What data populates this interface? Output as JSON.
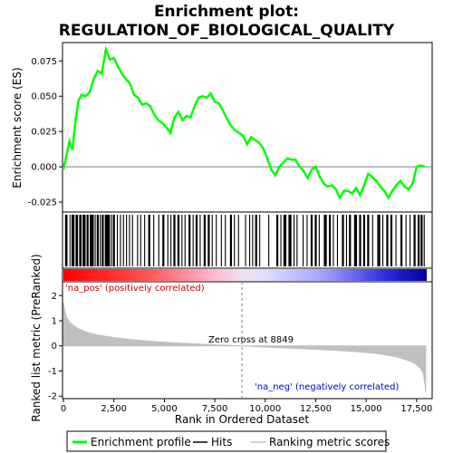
{
  "chart_data": {
    "type": "line",
    "title_line1": "Enrichment plot:",
    "title_line2": "REGULATION_OF_BIOLOGICAL_QUALITY",
    "xlabel": "Rank in Ordered Dataset",
    "ylabel_top": "Enrichment score (ES)",
    "ylabel_bottom": "Ranked list metric (PreRanked)",
    "x_total": 18000,
    "xlim": [
      0,
      18000
    ],
    "x_ticks": [
      0,
      2500,
      5000,
      7500,
      10000,
      12500,
      15000,
      17500
    ],
    "x_tick_labels": [
      "0",
      "2,500",
      "5,000",
      "7,500",
      "10,000",
      "12,500",
      "15,000",
      "17,500"
    ],
    "es_ylim": [
      -0.032,
      0.088
    ],
    "es_ticks": [
      -0.025,
      0.0,
      0.025,
      0.05,
      0.075
    ],
    "es_tick_labels": [
      "-0.025",
      "0.000",
      "0.025",
      "0.050",
      "0.075"
    ],
    "metric_ylim": [
      -2.1,
      2.55
    ],
    "metric_ticks": [
      -2,
      -1,
      0,
      1,
      2
    ],
    "metric_tick_labels": [
      "-2",
      "-1",
      "0",
      "1",
      "2"
    ],
    "zero_cross": 8849,
    "zero_cross_label": "Zero cross at 8849",
    "pos_label": "'na_pos' (positively correlated)",
    "neg_label": "'na_neg' (negatively correlated)",
    "es_series": {
      "name": "Enrichment profile",
      "color": "#00ff00",
      "x": [
        0,
        150,
        300,
        450,
        600,
        750,
        900,
        1100,
        1300,
        1500,
        1700,
        1900,
        2100,
        2300,
        2500,
        2700,
        2900,
        3100,
        3300,
        3500,
        3700,
        3900,
        4100,
        4300,
        4500,
        4700,
        4900,
        5100,
        5300,
        5500,
        5700,
        5900,
        6100,
        6300,
        6500,
        6700,
        6900,
        7100,
        7300,
        7500,
        7700,
        7900,
        8100,
        8300,
        8500,
        8700,
        8900,
        9100,
        9300,
        9500,
        9700,
        9900,
        10100,
        10300,
        10500,
        10700,
        10900,
        11100,
        11300,
        11500,
        11700,
        11900,
        12100,
        12300,
        12500,
        12700,
        12900,
        13100,
        13300,
        13500,
        13700,
        13900,
        14100,
        14300,
        14500,
        14700,
        14900,
        15100,
        15300,
        15500,
        15700,
        15900,
        16100,
        16300,
        16500,
        16700,
        16900,
        17100,
        17300,
        17500,
        17700,
        17900
      ],
      "y": [
        -0.002,
        0.008,
        0.018,
        0.012,
        0.033,
        0.047,
        0.051,
        0.05,
        0.053,
        0.062,
        0.068,
        0.066,
        0.083,
        0.076,
        0.077,
        0.071,
        0.066,
        0.062,
        0.059,
        0.051,
        0.049,
        0.044,
        0.045,
        0.043,
        0.037,
        0.033,
        0.031,
        0.028,
        0.024,
        0.035,
        0.039,
        0.033,
        0.036,
        0.035,
        0.043,
        0.049,
        0.05,
        0.049,
        0.052,
        0.046,
        0.045,
        0.04,
        0.034,
        0.029,
        0.026,
        0.024,
        0.022,
        0.016,
        0.021,
        0.019,
        0.017,
        0.013,
        0.006,
        -0.002,
        -0.006,
        0.0,
        0.003,
        0.006,
        0.005,
        0.005,
        0.0,
        -0.003,
        -0.008,
        -0.002,
        0.0,
        -0.007,
        -0.012,
        -0.014,
        -0.013,
        -0.016,
        -0.022,
        -0.017,
        -0.017,
        -0.019,
        -0.015,
        -0.02,
        -0.013,
        -0.005,
        -0.007,
        -0.01,
        -0.014,
        -0.017,
        -0.022,
        -0.017,
        -0.013,
        -0.01,
        -0.014,
        -0.016,
        -0.012,
        0.0,
        0.001,
        0.0
      ]
    },
    "metric_series": {
      "name": "Ranking metric scores",
      "color": "#c0c0c0",
      "x": [
        0,
        50,
        150,
        300,
        500,
        800,
        1200,
        1800,
        2500,
        3500,
        4500,
        5500,
        6500,
        7500,
        8849,
        10000,
        11500,
        12500,
        13500,
        14500,
        15500,
        16000,
        16500,
        17000,
        17300,
        17500,
        17700,
        17800,
        17850,
        17900,
        17950
      ],
      "y": [
        1.72,
        1.45,
        1.15,
        0.95,
        0.8,
        0.66,
        0.53,
        0.42,
        0.33,
        0.24,
        0.17,
        0.12,
        0.08,
        0.04,
        0.0,
        -0.05,
        -0.1,
        -0.14,
        -0.18,
        -0.23,
        -0.3,
        -0.36,
        -0.44,
        -0.56,
        -0.65,
        -0.75,
        -0.9,
        -1.05,
        -1.2,
        -1.45,
        -1.85
      ]
    },
    "hits_name": "Hits",
    "hit_segments": [
      [
        80,
        200
      ],
      [
        300,
        330
      ],
      [
        400,
        550
      ],
      [
        600,
        720
      ],
      [
        780,
        900
      ],
      [
        950,
        1100
      ],
      [
        1150,
        1250
      ],
      [
        1300,
        1500
      ],
      [
        1550,
        1600
      ],
      [
        1650,
        1750
      ],
      [
        1800,
        1850
      ],
      [
        1900,
        2000
      ],
      [
        2050,
        2300
      ],
      [
        2350,
        2400
      ],
      [
        2450,
        2550
      ],
      [
        2650,
        2700
      ],
      [
        2800,
        2850
      ],
      [
        2950,
        3000
      ],
      [
        3100,
        3150
      ],
      [
        3250,
        3300
      ],
      [
        3400,
        3450
      ],
      [
        3650,
        3700
      ],
      [
        3800,
        3850
      ],
      [
        4000,
        4050
      ],
      [
        4200,
        4300
      ],
      [
        4450,
        4500
      ],
      [
        4700,
        4750
      ],
      [
        4900,
        5000
      ],
      [
        5150,
        5200
      ],
      [
        5300,
        5350
      ],
      [
        5450,
        5550
      ],
      [
        5650,
        5750
      ],
      [
        5850,
        5900
      ],
      [
        6000,
        6050
      ],
      [
        6200,
        6300
      ],
      [
        6400,
        6450
      ],
      [
        6550,
        6650
      ],
      [
        6750,
        6800
      ],
      [
        6950,
        7050
      ],
      [
        7150,
        7250
      ],
      [
        7350,
        7400
      ],
      [
        7550,
        7600
      ],
      [
        7800,
        7850
      ],
      [
        8000,
        8050
      ],
      [
        8250,
        8350
      ],
      [
        8450,
        8500
      ],
      [
        8650,
        8700
      ],
      [
        9000,
        9050
      ],
      [
        9200,
        9250
      ],
      [
        9350,
        9400
      ],
      [
        9500,
        9600
      ],
      [
        9700,
        9750
      ],
      [
        10150,
        10200
      ],
      [
        10550,
        10650
      ],
      [
        10750,
        10800
      ],
      [
        10900,
        11050
      ],
      [
        11150,
        11300
      ],
      [
        11400,
        11450
      ],
      [
        11550,
        11600
      ],
      [
        11850,
        11900
      ],
      [
        12050,
        12100
      ],
      [
        12250,
        12350
      ],
      [
        12450,
        12550
      ],
      [
        12650,
        12700
      ],
      [
        12900,
        13050
      ],
      [
        13150,
        13250
      ],
      [
        13350,
        13400
      ],
      [
        13550,
        13600
      ],
      [
        13800,
        13900
      ],
      [
        14000,
        14050
      ],
      [
        14150,
        14250
      ],
      [
        14400,
        14550
      ],
      [
        14650,
        14750
      ],
      [
        14850,
        14950
      ],
      [
        15050,
        15150
      ],
      [
        15300,
        15350
      ],
      [
        15550,
        15700
      ],
      [
        15800,
        15850
      ],
      [
        16000,
        16100
      ],
      [
        16200,
        16300
      ],
      [
        16450,
        16500
      ],
      [
        16700,
        16800
      ],
      [
        16950,
        17000
      ],
      [
        17150,
        17200
      ],
      [
        17350,
        17450
      ],
      [
        17550,
        17650
      ],
      [
        17700,
        17800
      ],
      [
        17850,
        17900
      ]
    ],
    "legend": [
      "Enrichment profile",
      "Hits",
      "Ranking metric scores"
    ],
    "grid": false,
    "legend_placement": "bottom"
  },
  "colors": {
    "es_line": "#00ff00",
    "hits": "#000000",
    "metric_fill": "#c0c0c0",
    "zero_line": "#808080",
    "pos_label": "#cc0000",
    "neg_label": "#0000cc",
    "heat_pos": "#ff0000",
    "heat_neg": "#0000ff"
  }
}
